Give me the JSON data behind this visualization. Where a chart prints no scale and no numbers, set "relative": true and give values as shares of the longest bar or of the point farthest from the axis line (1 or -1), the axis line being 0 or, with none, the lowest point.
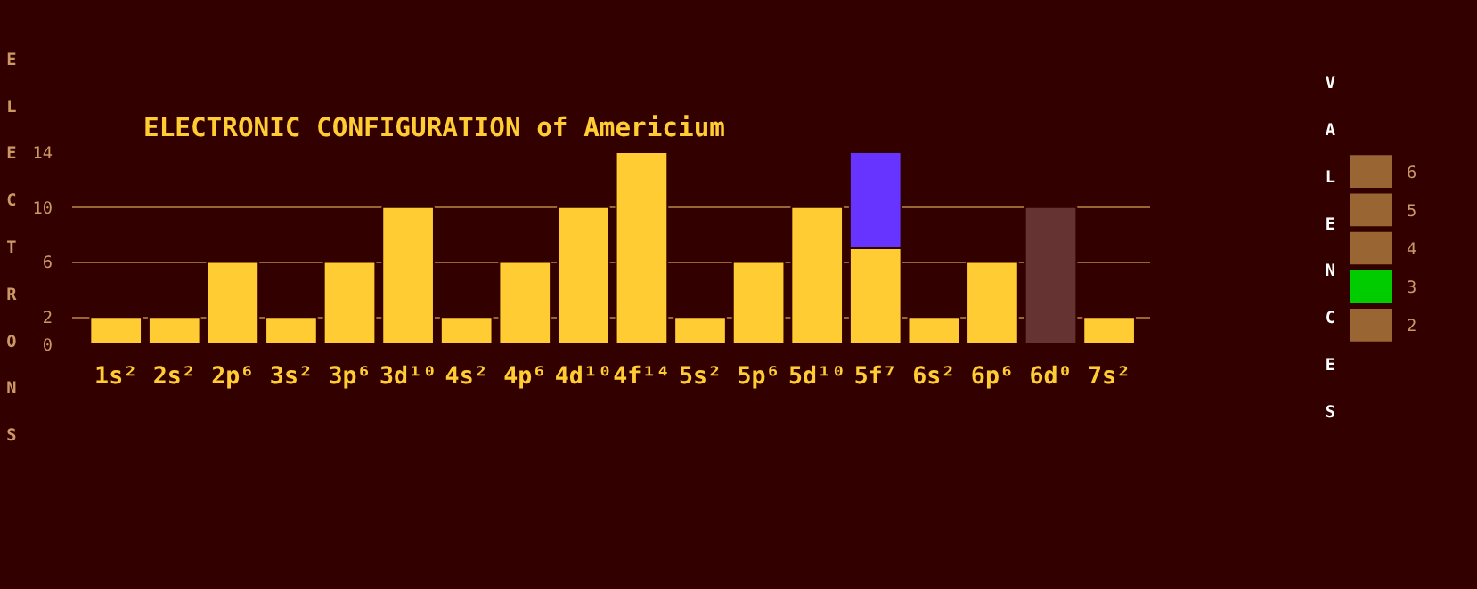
{
  "chart_data": [
    {
      "type": "bar",
      "stacked": true,
      "title": "ELECTRONIC CONFIGURATION of Americium",
      "ylabel": "ELECTRONS",
      "categories": [
        "1s²",
        "2s²",
        "2p⁶",
        "3s²",
        "3p⁶",
        "3d¹⁰",
        "4s²",
        "4p⁶",
        "4d¹⁰",
        "4f¹⁴",
        "5s²",
        "5p⁶",
        "5d¹⁰",
        "5f⁷",
        "6s²",
        "6p⁶",
        "6d⁰",
        "7s²"
      ],
      "series": [
        {
          "color": "#ffcc33",
          "values": [
            2,
            2,
            6,
            2,
            6,
            10,
            2,
            6,
            10,
            14,
            2,
            6,
            10,
            7,
            2,
            6,
            0,
            2
          ]
        },
        {
          "colors": [
            null,
            null,
            null,
            null,
            null,
            null,
            null,
            null,
            null,
            null,
            null,
            null,
            null,
            "#6633ff",
            null,
            null,
            "#663333",
            null
          ],
          "values": [
            null,
            null,
            null,
            null,
            null,
            null,
            null,
            null,
            null,
            null,
            null,
            null,
            null,
            7,
            null,
            null,
            10,
            null
          ]
        }
      ],
      "ylim": [
        0,
        14
      ],
      "yticks": [
        0,
        2,
        6,
        10,
        14
      ],
      "grid": "y"
    },
    {
      "type": "bar",
      "orientation": "horizontal",
      "relative": true,
      "ylabel": "VALENCES",
      "categories": [
        "6",
        "5",
        "4",
        "3",
        "2"
      ],
      "values": [
        1,
        1,
        1,
        1,
        1
      ],
      "colors": [
        "#996633",
        "#996633",
        "#996633",
        "#00cc00",
        "#996633"
      ]
    }
  ]
}
